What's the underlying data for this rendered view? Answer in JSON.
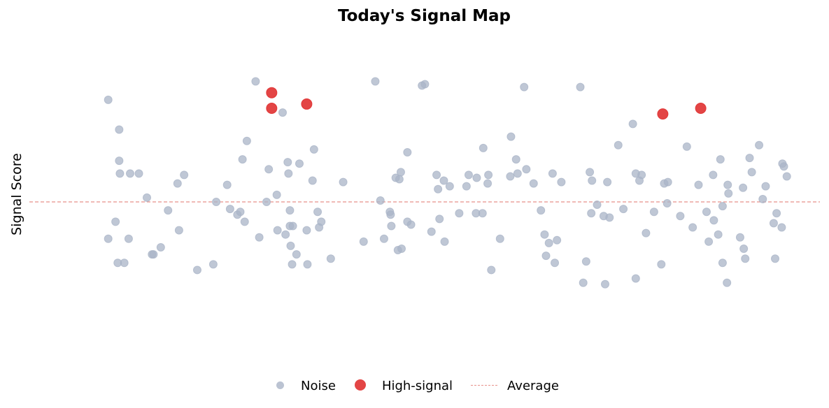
{
  "chart_data": {
    "type": "scatter",
    "title": "Today's Signal Map",
    "ylabel": "Signal Score",
    "xlabel": "",
    "xlim": [
      0,
      100
    ],
    "ylim": [
      -10,
      10
    ],
    "grid": false,
    "legend_position": "bottom-center",
    "average": 0,
    "colors": {
      "noise": "#aab4c7",
      "high_signal": "#e03131",
      "average": "#e8908a"
    },
    "series": [
      {
        "name": "Noise",
        "points": [
          [
            6.3,
            7.2
          ],
          [
            6.3,
            -2.6
          ],
          [
            9.1,
            -2.6
          ],
          [
            7.3,
            -1.4
          ],
          [
            7.8,
            2.9
          ],
          [
            7.8,
            5.1
          ],
          [
            7.9,
            2.0
          ],
          [
            8.5,
            -4.3
          ],
          [
            7.6,
            -4.3
          ],
          [
            9.3,
            2.0
          ],
          [
            10.5,
            2.0
          ],
          [
            11.6,
            0.3
          ],
          [
            12.3,
            -3.7
          ],
          [
            12.5,
            -3.7
          ],
          [
            14.5,
            -0.6
          ],
          [
            15.8,
            1.3
          ],
          [
            16.0,
            -2.0
          ],
          [
            16.7,
            1.9
          ],
          [
            18.5,
            -4.8
          ],
          [
            20.7,
            -4.4
          ],
          [
            22.6,
            1.2
          ],
          [
            23.0,
            -0.5
          ],
          [
            24.0,
            -0.9
          ],
          [
            24.4,
            -0.7
          ],
          [
            25.0,
            -1.4
          ],
          [
            26.5,
            8.5
          ],
          [
            24.7,
            3.0
          ],
          [
            25.3,
            4.3
          ],
          [
            27.0,
            -2.5
          ],
          [
            28.0,
            0.0
          ],
          [
            28.3,
            2.3
          ],
          [
            29.4,
            0.5
          ],
          [
            29.5,
            -2.0
          ],
          [
            30.6,
            -2.3
          ],
          [
            30.9,
            2.8
          ],
          [
            31.5,
            -4.4
          ],
          [
            31.0,
            2.0
          ],
          [
            31.2,
            -1.7
          ],
          [
            32.1,
            -3.7
          ],
          [
            31.2,
            -0.6
          ],
          [
            31.3,
            -3.1
          ],
          [
            32.5,
            2.7
          ],
          [
            33.5,
            -2.0
          ],
          [
            34.5,
            3.7
          ],
          [
            33.6,
            -4.4
          ],
          [
            34.3,
            1.5
          ],
          [
            35.0,
            -0.7
          ],
          [
            35.2,
            -1.8
          ],
          [
            31.6,
            -1.7
          ],
          [
            35.5,
            -1.4
          ],
          [
            38.5,
            1.4
          ],
          [
            41.3,
            -2.8
          ],
          [
            42.9,
            8.5
          ],
          [
            43.6,
            0.1
          ],
          [
            44.1,
            -2.6
          ],
          [
            44.9,
            -0.7
          ],
          [
            45.0,
            -0.9
          ],
          [
            45.1,
            -1.7
          ],
          [
            46.0,
            -3.4
          ],
          [
            45.7,
            1.7
          ],
          [
            46.2,
            1.6
          ],
          [
            46.4,
            2.1
          ],
          [
            46.5,
            -3.3
          ],
          [
            47.3,
            3.5
          ],
          [
            47.3,
            -1.4
          ],
          [
            47.8,
            -1.6
          ],
          [
            49.3,
            8.2
          ],
          [
            49.7,
            8.3
          ],
          [
            50.6,
            -2.1
          ],
          [
            51.3,
            1.9
          ],
          [
            51.5,
            0.9
          ],
          [
            51.7,
            -1.2
          ],
          [
            52.3,
            1.5
          ],
          [
            53.1,
            1.1
          ],
          [
            54.4,
            -0.8
          ],
          [
            55.4,
            1.1
          ],
          [
            56.8,
            1.7
          ],
          [
            56.7,
            -0.8
          ],
          [
            57.6,
            -0.8
          ],
          [
            57.7,
            3.8
          ],
          [
            58.3,
            1.3
          ],
          [
            58.4,
            1.9
          ],
          [
            58.8,
            -4.8
          ],
          [
            60.0,
            -2.6
          ],
          [
            61.5,
            4.6
          ],
          [
            61.4,
            1.8
          ],
          [
            62.2,
            3.0
          ],
          [
            62.4,
            2.0
          ],
          [
            63.3,
            8.1
          ],
          [
            64.6,
            1.3
          ],
          [
            65.6,
            -0.6
          ],
          [
            66.1,
            -2.3
          ],
          [
            66.7,
            -2.9
          ],
          [
            66.3,
            -3.8
          ],
          [
            67.2,
            2.0
          ],
          [
            67.5,
            -4.3
          ],
          [
            67.8,
            -2.7
          ],
          [
            68.4,
            1.4
          ],
          [
            71.0,
            8.1
          ],
          [
            71.4,
            -5.7
          ],
          [
            72.3,
            2.1
          ],
          [
            72.6,
            1.5
          ],
          [
            72.5,
            -0.8
          ],
          [
            73.3,
            -0.2
          ],
          [
            74.2,
            -1.0
          ],
          [
            74.4,
            -5.8
          ],
          [
            74.7,
            1.4
          ],
          [
            75.0,
            -1.1
          ],
          [
            76.2,
            4.0
          ],
          [
            76.9,
            -0.5
          ],
          [
            78.6,
            -5.4
          ],
          [
            78.2,
            5.5
          ],
          [
            78.6,
            2.0
          ],
          [
            79.1,
            1.5
          ],
          [
            79.4,
            1.9
          ],
          [
            80.0,
            -2.2
          ],
          [
            81.1,
            -0.7
          ],
          [
            82.5,
            1.3
          ],
          [
            82.1,
            -4.4
          ],
          [
            82.9,
            -0.1
          ],
          [
            83.0,
            1.4
          ],
          [
            84.7,
            -1.0
          ],
          [
            85.6,
            3.9
          ],
          [
            86.4,
            -1.8
          ],
          [
            87.2,
            1.2
          ],
          [
            88.3,
            -0.7
          ],
          [
            88.6,
            -2.8
          ],
          [
            89.2,
            1.9
          ],
          [
            89.3,
            -1.3
          ],
          [
            89.9,
            -2.3
          ],
          [
            90.5,
            -0.3
          ],
          [
            90.5,
            -4.3
          ],
          [
            90.2,
            3.0
          ],
          [
            91.1,
            -5.7
          ],
          [
            91.3,
            0.6
          ],
          [
            92.9,
            -2.5
          ],
          [
            93.3,
            1.0
          ],
          [
            93.4,
            -3.3
          ],
          [
            93.6,
            -4.0
          ],
          [
            94.2,
            3.1
          ],
          [
            94.5,
            2.1
          ],
          [
            95.5,
            4.0
          ],
          [
            96.0,
            0.2
          ],
          [
            96.4,
            1.1
          ],
          [
            97.5,
            -1.5
          ],
          [
            97.9,
            -0.8
          ],
          [
            97.7,
            -4.0
          ],
          [
            98.6,
            -1.8
          ],
          [
            98.7,
            2.7
          ],
          [
            98.9,
            2.5
          ],
          [
            99.3,
            1.8
          ],
          [
            91.2,
            1.2
          ],
          [
            71.8,
            -4.2
          ],
          [
            63.6,
            2.3
          ],
          [
            55.7,
            1.9
          ],
          [
            52.4,
            -2.8
          ],
          [
            36.8,
            -4.0
          ],
          [
            30.2,
            6.3
          ],
          [
            21.1,
            0.0
          ],
          [
            13.5,
            -3.2
          ]
        ]
      },
      {
        "name": "High-signal",
        "points": [
          [
            28.7,
            7.7
          ],
          [
            28.7,
            6.6
          ],
          [
            33.5,
            6.9
          ],
          [
            82.3,
            6.2
          ],
          [
            87.5,
            6.6
          ]
        ]
      }
    ],
    "legend": [
      {
        "label": "Noise",
        "marker": "circle-small"
      },
      {
        "label": "High-signal",
        "marker": "circle-large"
      },
      {
        "label": "Average",
        "marker": "dashed-line"
      }
    ]
  }
}
